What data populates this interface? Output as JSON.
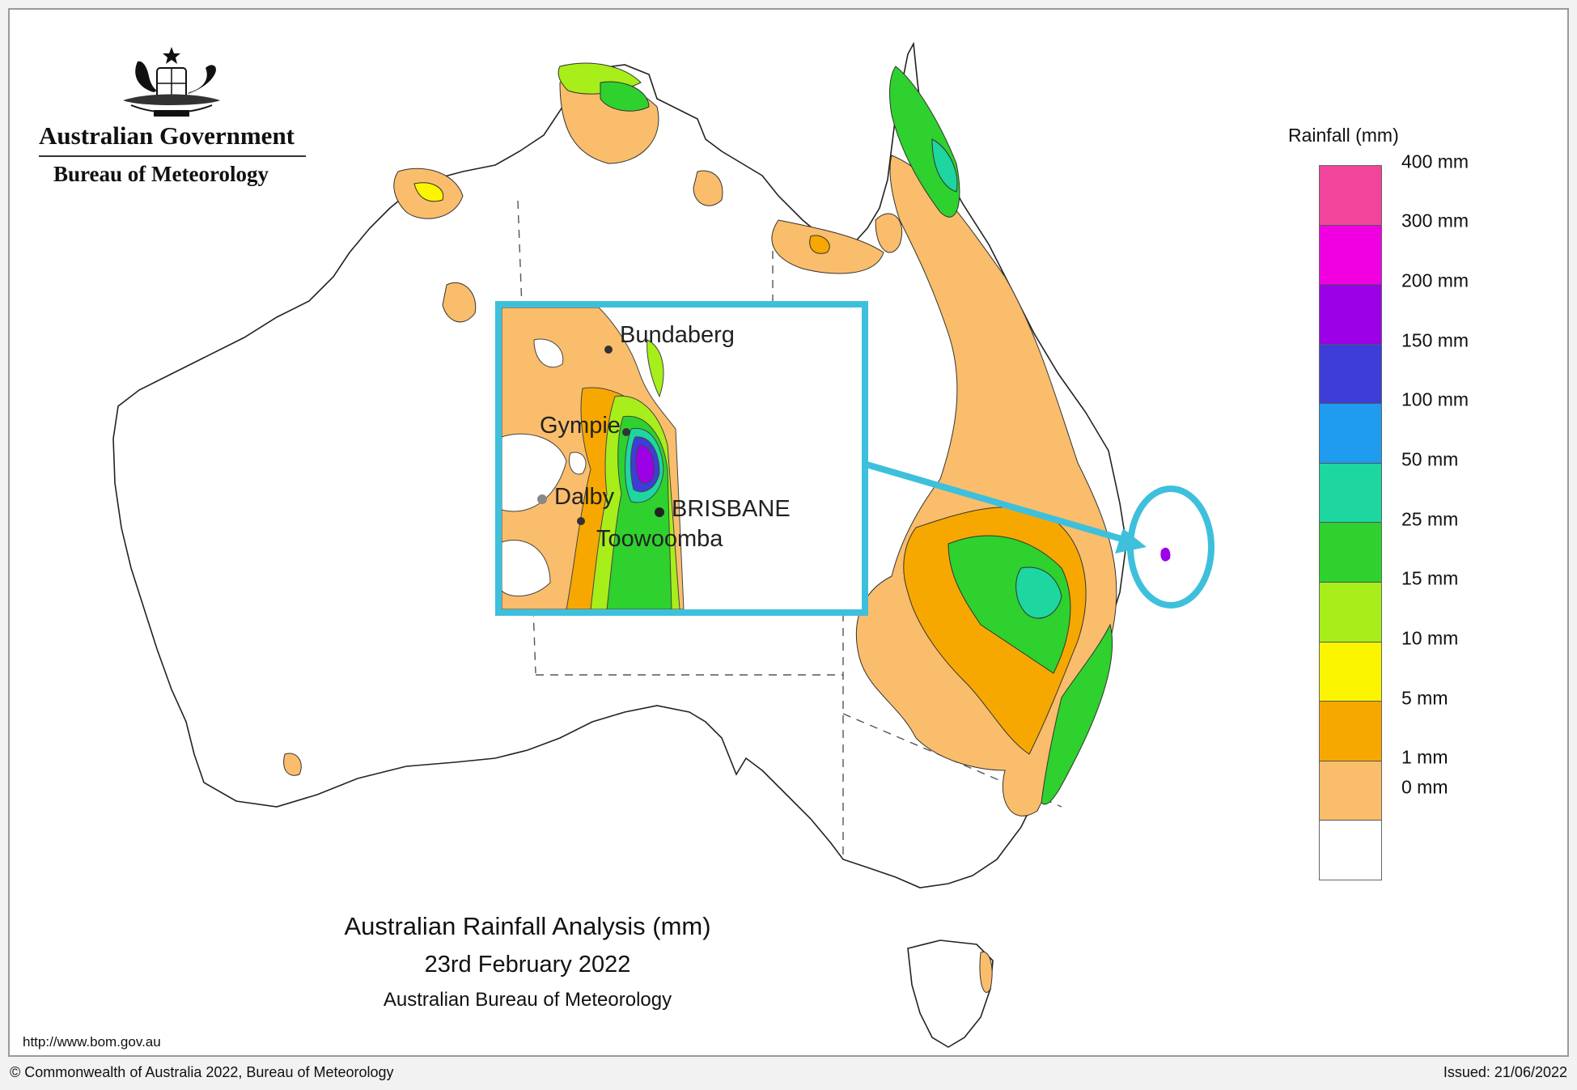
{
  "header": {
    "government": "Australian Government",
    "bureau": "Bureau of Meteorology"
  },
  "title": {
    "line1": "Australian Rainfall Analysis (mm)",
    "line2": "23rd February 2022",
    "line3": "Australian Bureau of Meteorology"
  },
  "legend": {
    "title": "Rainfall (mm)",
    "swatches": [
      {
        "color": "#f2449a"
      },
      {
        "color": "#f000e0"
      },
      {
        "color": "#9c00e6"
      },
      {
        "color": "#3d3dd9"
      },
      {
        "color": "#1f9bf0"
      },
      {
        "color": "#1ed6a0"
      },
      {
        "color": "#2ed12e"
      },
      {
        "color": "#a8ee1a"
      },
      {
        "color": "#fbf500"
      },
      {
        "color": "#f7a800"
      },
      {
        "color": "#f9bd6b"
      },
      {
        "color": "#ffffff"
      }
    ],
    "labels": [
      "400 mm",
      "300 mm",
      "200 mm",
      "150 mm",
      "100 mm",
      "50 mm",
      "25 mm",
      "15 mm",
      "10 mm",
      "5 mm",
      "1 mm",
      "0 mm"
    ]
  },
  "inset": {
    "places": {
      "bundaberg": "Bundaberg",
      "gympie": "Gympie",
      "dalby": "Dalby",
      "brisbane": "BRISBANE",
      "toowoomba": "Toowoomba"
    },
    "highlight_color": "#3ec0dc"
  },
  "footer": {
    "url": "http://www.bom.gov.au",
    "copyright": "© Commonwealth of Australia 2022, Bureau of Meteorology",
    "issued": "Issued: 21/06/2022"
  }
}
